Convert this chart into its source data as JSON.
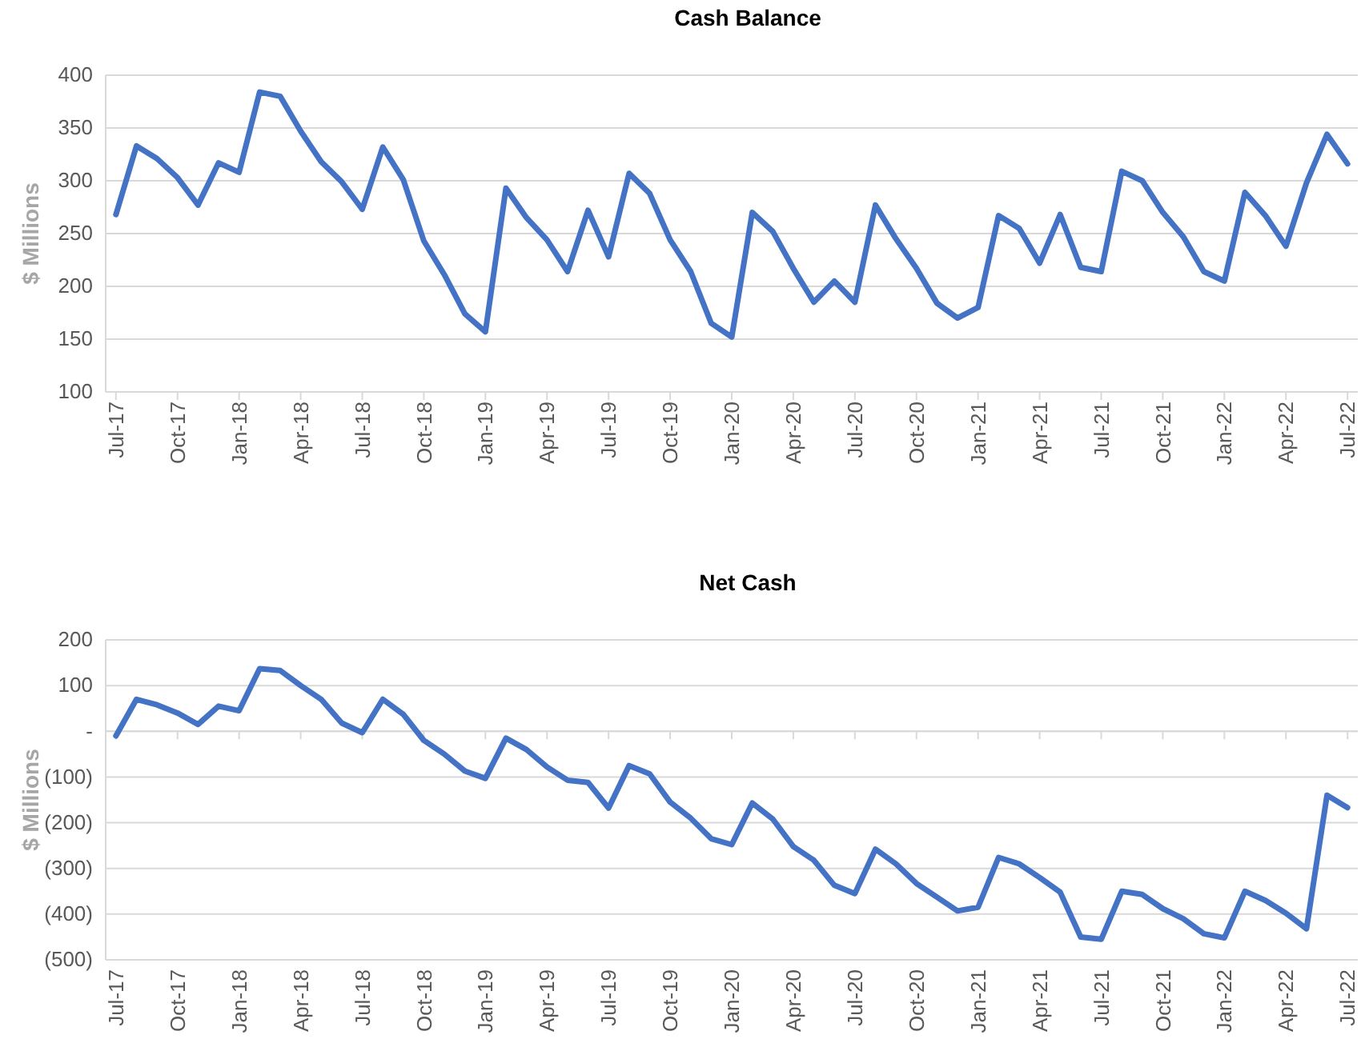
{
  "chart_data": [
    {
      "type": "line",
      "title": "Cash Balance",
      "ylabel": "$ Millions",
      "categories": [
        "Jul-17",
        null,
        null,
        "Oct-17",
        null,
        null,
        "Jan-18",
        null,
        null,
        "Apr-18",
        null,
        null,
        "Jul-18",
        null,
        null,
        "Oct-18",
        null,
        null,
        "Jan-19",
        null,
        null,
        "Apr-19",
        null,
        null,
        "Jul-19",
        null,
        null,
        "Oct-19",
        null,
        null,
        "Jan-20",
        null,
        null,
        "Apr-20",
        null,
        null,
        "Jul-20",
        null,
        null,
        "Oct-20",
        null,
        null,
        "Jan-21",
        null,
        null,
        "Apr-21",
        null,
        null,
        "Jul-21",
        null,
        null,
        "Oct-21",
        null,
        null,
        "Jan-22",
        null,
        null,
        "Apr-22",
        null,
        null,
        "Jul-22"
      ],
      "series": [
        {
          "color": "#4472c4",
          "values": [
            268,
            333,
            321,
            303,
            277,
            317,
            308,
            384,
            380,
            347,
            318,
            299,
            273,
            332,
            301,
            243,
            211,
            174,
            157,
            293,
            265,
            244,
            214,
            272,
            228,
            307,
            288,
            244,
            214,
            165,
            152,
            270,
            252,
            217,
            185,
            205,
            185,
            277,
            245,
            217,
            184,
            170,
            180,
            267,
            255,
            222,
            268,
            218,
            214,
            309,
            300,
            270,
            247,
            214,
            205,
            289,
            267,
            238,
            298,
            344,
            316
          ]
        }
      ],
      "ylim": [
        100,
        400
      ],
      "yticks": [
        100,
        150,
        200,
        250,
        300,
        350,
        400
      ],
      "grid": "y",
      "line_style": "solid",
      "marker": "none"
    },
    {
      "type": "line",
      "title": "Net Cash",
      "ylabel": "$ Millions",
      "categories": [
        "Jul-17",
        null,
        null,
        "Oct-17",
        null,
        null,
        "Jan-18",
        null,
        null,
        "Apr-18",
        null,
        null,
        "Jul-18",
        null,
        null,
        "Oct-18",
        null,
        null,
        "Jan-19",
        null,
        null,
        "Apr-19",
        null,
        null,
        "Jul-19",
        null,
        null,
        "Oct-19",
        null,
        null,
        "Jan-20",
        null,
        null,
        "Apr-20",
        null,
        null,
        "Jul-20",
        null,
        null,
        "Oct-20",
        null,
        null,
        "Jan-21",
        null,
        null,
        "Apr-21",
        null,
        null,
        "Jul-21",
        null,
        null,
        "Oct-21",
        null,
        null,
        "Jan-22",
        null,
        null,
        "Apr-22",
        null,
        null,
        "Jul-22"
      ],
      "series": [
        {
          "color": "#4472c4",
          "values": [
            -10,
            70,
            58,
            40,
            15,
            55,
            45,
            137,
            133,
            100,
            70,
            18,
            -3,
            70,
            37,
            -20,
            -50,
            -87,
            -103,
            -15,
            -40,
            -78,
            -107,
            -112,
            -168,
            -75,
            -93,
            -155,
            -190,
            -235,
            -248,
            -157,
            -192,
            -252,
            -282,
            -337,
            -355,
            -258,
            -290,
            -333,
            -363,
            -393,
            -385,
            -276,
            -290,
            -320,
            -352,
            -450,
            -455,
            -350,
            -357,
            -388,
            -410,
            -443,
            -452,
            -350,
            -370,
            -398,
            -432,
            -140,
            -167
          ]
        }
      ],
      "ylim": [
        -500,
        200
      ],
      "yticks": [
        {
          "value": -500,
          "label": "(500)"
        },
        {
          "value": -400,
          "label": "(400)"
        },
        {
          "value": -300,
          "label": "(300)"
        },
        {
          "value": -200,
          "label": "(200)"
        },
        {
          "value": -100,
          "label": "(100)"
        },
        {
          "value": 0,
          "label": "-"
        },
        100,
        200
      ],
      "grid": "y",
      "line_style": "solid",
      "marker": "none"
    }
  ]
}
